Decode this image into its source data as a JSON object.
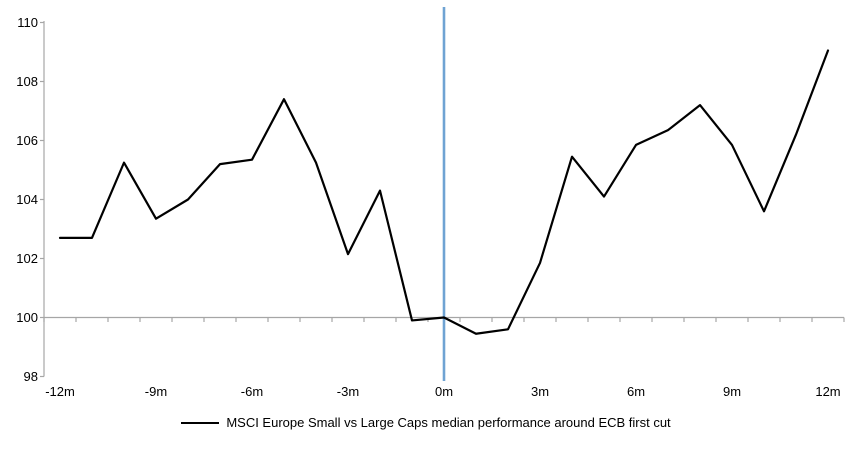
{
  "chart_data": {
    "type": "line",
    "title": "",
    "x_axis_label": "",
    "y_axis_label": "",
    "x_months": [
      -12,
      -11,
      -10,
      -9,
      -8,
      -7,
      -6,
      -5,
      -4,
      -3,
      -2,
      -1,
      0,
      1,
      2,
      3,
      4,
      5,
      6,
      7,
      8,
      9,
      10,
      11,
      12
    ],
    "series": [
      {
        "name": "MSCI Europe Small vs Large Caps median performance around ECB first cut",
        "color": "#000000",
        "values": [
          102.7,
          102.7,
          105.25,
          103.35,
          104.0,
          105.2,
          105.35,
          107.4,
          105.25,
          102.15,
          104.3,
          99.9,
          100.0,
          99.45,
          99.6,
          101.85,
          105.45,
          104.1,
          105.85,
          106.35,
          107.2,
          105.85,
          103.6,
          106.2,
          109.05
        ]
      }
    ],
    "y_ticks": [
      110,
      108,
      106,
      104,
      102,
      100,
      98
    ],
    "x_tick_labels": [
      "-12m",
      "-9m",
      "-6m",
      "-3m",
      "0m",
      "3m",
      "6m",
      "9m",
      "12m"
    ],
    "x_tick_months": [
      -12,
      -9,
      -6,
      -3,
      0,
      3,
      6,
      9,
      12
    ],
    "ylim": [
      98,
      110.5
    ],
    "baseline_value": 100,
    "event_line_x": 0,
    "grid": "baseline-only",
    "legend_position": "bottom-center",
    "colors": {
      "series_line": "#000000",
      "event_line": "#6FA3D3",
      "axis": "#A6A6A6"
    }
  }
}
